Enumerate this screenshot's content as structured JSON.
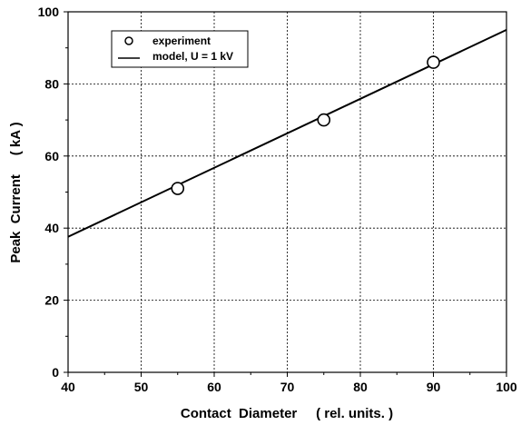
{
  "chart_data": {
    "type": "scatter",
    "xlabel": "Contact  Diameter     ( rel. units. )",
    "ylabel": "Peak  Current     ( kA )",
    "xlim": [
      40,
      100
    ],
    "ylim": [
      0,
      100
    ],
    "x_ticks": [
      "40",
      "50",
      "60",
      "70",
      "80",
      "90",
      "100"
    ],
    "y_ticks": [
      "0",
      "20",
      "40",
      "60",
      "80",
      "100"
    ],
    "grid": true,
    "legend_position": "top-left",
    "series": [
      {
        "name": "experiment",
        "kind": "scatter",
        "marker": "open-circle",
        "x": [
          55,
          75,
          90
        ],
        "y": [
          51,
          70,
          86
        ]
      },
      {
        "name": "model, U = 1 kV",
        "kind": "line",
        "x": [
          40,
          100
        ],
        "y": [
          37.6,
          95
        ]
      }
    ],
    "colors": {
      "line": "#000000",
      "marker_fill": "#ffffff",
      "marker_stroke": "#000000"
    }
  }
}
